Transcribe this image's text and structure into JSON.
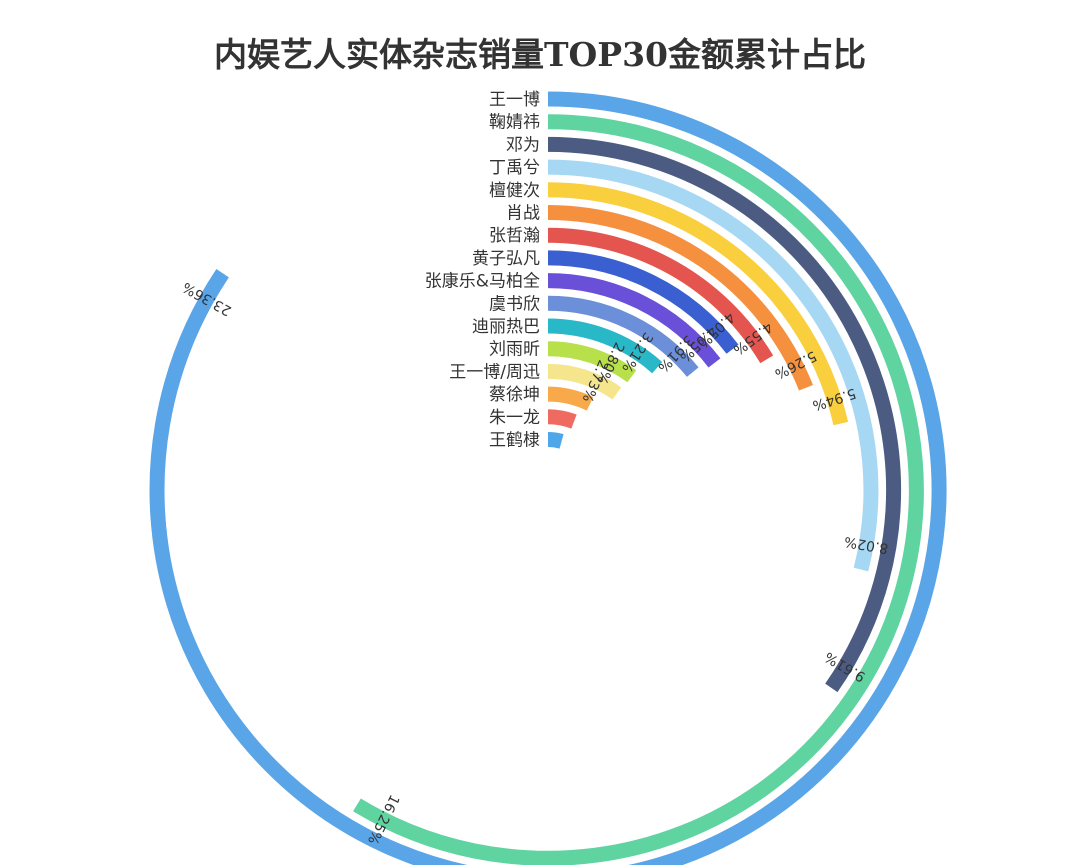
{
  "chart_data": {
    "type": "radial-bar",
    "title": "内娱艺人实体杂志销量TOP30金额累计占比",
    "series": [
      {
        "name": "王一博",
        "value": 23.36,
        "label": "23.36%",
        "color": "#5aa5e8"
      },
      {
        "name": "鞠婧祎",
        "value": 16.25,
        "label": "16.25%",
        "color": "#5fd4a0"
      },
      {
        "name": "邓为",
        "value": 9.61,
        "label": "9.61%",
        "color": "#4b5b82"
      },
      {
        "name": "丁禹兮",
        "value": 8.02,
        "label": "8.02%",
        "color": "#a6d8f4"
      },
      {
        "name": "檀健次",
        "value": 5.94,
        "label": "5.94%",
        "color": "#f9cf3e"
      },
      {
        "name": "肖战",
        "value": 5.26,
        "label": "5.26%",
        "color": "#f5903e"
      },
      {
        "name": "张哲瀚",
        "value": 4.55,
        "label": "4.55%",
        "color": "#e5554f"
      },
      {
        "name": "黄子弘凡",
        "value": 4.05,
        "label": "4.05%",
        "color": "#3a5fd0"
      },
      {
        "name": "张康乐&马柏全",
        "value": 4.05,
        "label": "4.05%",
        "color": "#6a4fd8"
      },
      {
        "name": "虞书欣",
        "value": 3.91,
        "label": "3.91%",
        "color": "#6b8fd8"
      },
      {
        "name": "迪丽热巴",
        "value": 3.21,
        "label": "3.21%",
        "color": "#28b8c8"
      },
      {
        "name": "刘雨昕",
        "value": 2.8,
        "label": "2.80%",
        "color": "#b8e04a"
      },
      {
        "name": "王一博/周迅",
        "value": 2.73,
        "label": "2.73%",
        "color": "#f5e68e"
      },
      {
        "name": "蔡徐坤",
        "value": 2.0,
        "label": "",
        "color": "#f8a94a"
      },
      {
        "name": "朱一龙",
        "value": 1.6,
        "label": "",
        "color": "#ef6b62"
      },
      {
        "name": "王鹤棣",
        "value": 1.2,
        "label": "",
        "color": "#4fa6e8"
      }
    ]
  }
}
